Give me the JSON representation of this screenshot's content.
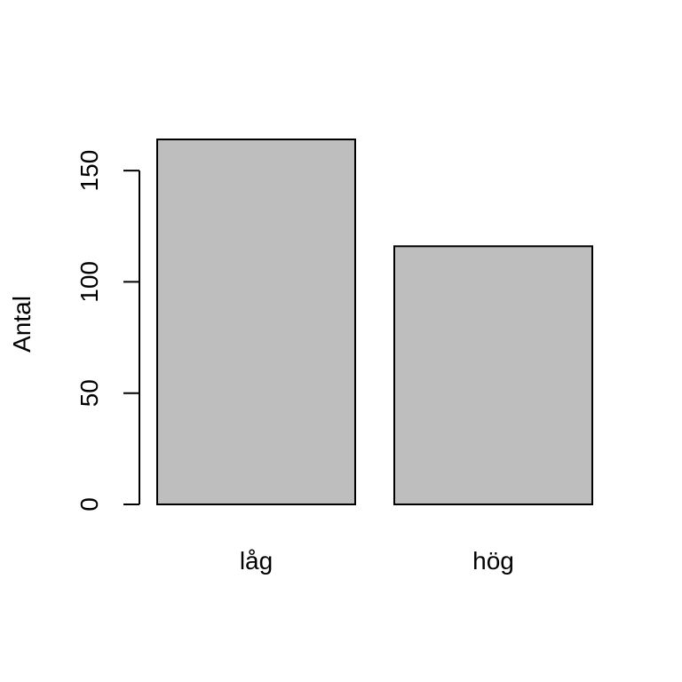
{
  "chart_data": {
    "type": "bar",
    "title": "",
    "xlabel": "",
    "ylabel": "Antal",
    "categories": [
      "låg",
      "hög"
    ],
    "values": [
      164,
      116
    ],
    "ylim": [
      0,
      164
    ],
    "yticks": [
      0,
      50,
      100,
      150
    ],
    "bar_color": "#bebebe",
    "bar_stroke": "#000000",
    "grid": false,
    "legend": "none"
  }
}
